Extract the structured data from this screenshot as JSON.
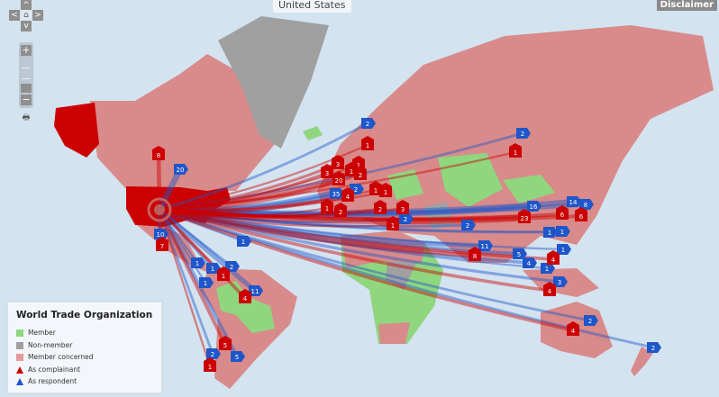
{
  "header": {
    "title": "United States",
    "disclaimer_label": "Disclaimer"
  },
  "controls": {
    "up": "^",
    "left": "<",
    "home": "⌂",
    "right": ">",
    "down": "v",
    "zoom_in": "+",
    "zoom_out": "−",
    "print": "🖶"
  },
  "legend": {
    "title": "World Trade Organization",
    "items": [
      {
        "label": "Member",
        "color": "#8fd67f",
        "kind": "swatch"
      },
      {
        "label": "Non-member",
        "color": "#a0a0a0",
        "kind": "swatch"
      },
      {
        "label": "Member concerned",
        "color": "#e69a9a",
        "kind": "swatch"
      },
      {
        "label": "As complainant",
        "color": "#cc0000",
        "kind": "triangle"
      },
      {
        "label": "As respondent",
        "color": "#1f56c9",
        "kind": "triangle"
      }
    ]
  },
  "colors": {
    "ocean": "#d3e3f0",
    "member_concerned": "#d98a8a",
    "member": "#8fd67f",
    "non_member": "#a0a0a0",
    "selected": "#cc0000",
    "complainant": "#cc0000",
    "respondent": "#1f56c9"
  },
  "markers": [
    {
      "value": "2",
      "role": "respondent"
    },
    {
      "value": "20",
      "role": "respondent"
    },
    {
      "value": "35",
      "role": "respondent"
    },
    {
      "value": "2",
      "role": "respondent"
    },
    {
      "value": "2",
      "role": "respondent"
    },
    {
      "value": "2",
      "role": "respondent"
    },
    {
      "value": "16",
      "role": "respondent"
    },
    {
      "value": "14",
      "role": "respondent"
    },
    {
      "value": "8",
      "role": "respondent"
    },
    {
      "value": "1",
      "role": "respondent"
    },
    {
      "value": "1",
      "role": "respondent"
    },
    {
      "value": "11",
      "role": "respondent"
    },
    {
      "value": "5",
      "role": "respondent"
    },
    {
      "value": "4",
      "role": "respondent"
    },
    {
      "value": "1",
      "role": "respondent"
    },
    {
      "value": "1",
      "role": "respondent"
    },
    {
      "value": "3",
      "role": "respondent"
    },
    {
      "value": "2",
      "role": "respondent"
    },
    {
      "value": "2",
      "role": "respondent"
    },
    {
      "value": "10",
      "role": "respondent"
    },
    {
      "value": "1",
      "role": "respondent"
    },
    {
      "value": "1",
      "role": "respondent"
    },
    {
      "value": "2",
      "role": "respondent"
    },
    {
      "value": "1",
      "role": "respondent"
    },
    {
      "value": "11",
      "role": "respondent"
    },
    {
      "value": "2",
      "role": "respondent"
    },
    {
      "value": "5",
      "role": "respondent"
    },
    {
      "value": "1",
      "role": "respondent"
    },
    {
      "value": "2",
      "role": "respondent"
    },
    {
      "value": "8",
      "role": "complainant"
    },
    {
      "value": "7",
      "role": "complainant"
    },
    {
      "value": "1",
      "role": "complainant"
    },
    {
      "value": "4",
      "role": "complainant"
    },
    {
      "value": "5",
      "role": "complainant"
    },
    {
      "value": "1",
      "role": "complainant"
    },
    {
      "value": "1",
      "role": "complainant"
    },
    {
      "value": "3",
      "role": "complainant"
    },
    {
      "value": "3",
      "role": "complainant"
    },
    {
      "value": "1",
      "role": "complainant"
    },
    {
      "value": "2",
      "role": "complainant"
    },
    {
      "value": "20",
      "role": "complainant"
    },
    {
      "value": "4",
      "role": "complainant"
    },
    {
      "value": "1",
      "role": "complainant"
    },
    {
      "value": "2",
      "role": "complainant"
    },
    {
      "value": "1",
      "role": "complainant"
    },
    {
      "value": "1",
      "role": "complainant"
    },
    {
      "value": "2",
      "role": "complainant"
    },
    {
      "value": "3",
      "role": "complainant"
    },
    {
      "value": "1",
      "role": "complainant"
    },
    {
      "value": "1",
      "role": "complainant"
    },
    {
      "value": "23",
      "role": "complainant"
    },
    {
      "value": "6",
      "role": "complainant"
    },
    {
      "value": "6",
      "role": "complainant"
    },
    {
      "value": "1",
      "role": "complainant"
    },
    {
      "value": "8",
      "role": "complainant"
    },
    {
      "value": "4",
      "role": "complainant"
    },
    {
      "value": "4",
      "role": "complainant"
    },
    {
      "value": "4",
      "role": "complainant"
    }
  ]
}
